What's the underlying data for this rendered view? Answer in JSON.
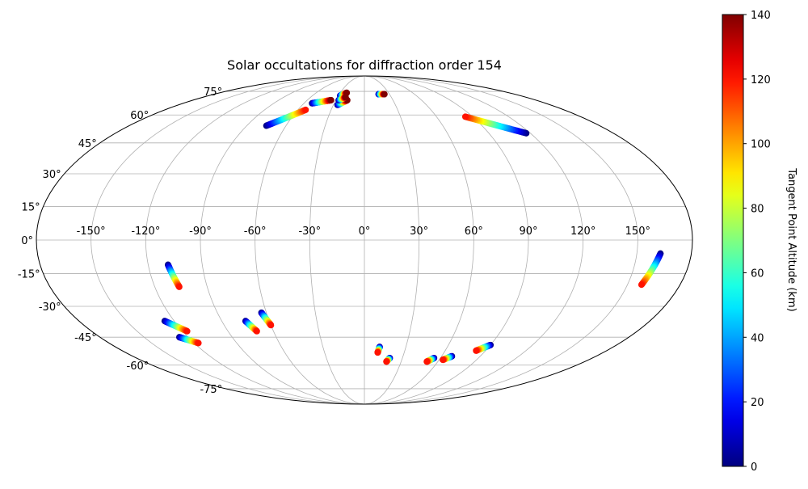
{
  "chart_data": {
    "type": "scatter",
    "projection": "mollweide",
    "title": "Solar occultations for diffraction order 154",
    "grid": true,
    "xticks": [
      "-150°",
      "-120°",
      "-90°",
      "-60°",
      "-30°",
      "0°",
      "30°",
      "60°",
      "90°",
      "120°",
      "150°"
    ],
    "xtick_values": [
      -150,
      -120,
      -90,
      -60,
      -30,
      0,
      30,
      60,
      90,
      120,
      150
    ],
    "yticks": [
      "75°",
      "60°",
      "45°",
      "30°",
      "15°",
      "0°",
      "-15°",
      "-30°",
      "-45°",
      "-60°",
      "-75°"
    ],
    "ytick_values": [
      75,
      60,
      45,
      30,
      15,
      0,
      -15,
      -30,
      -45,
      -60,
      -75
    ],
    "colorbar": {
      "label": "Tangent Point Altitude (km)",
      "range": [
        0,
        140
      ],
      "ticks": [
        "0",
        "20",
        "40",
        "60",
        "80",
        "100",
        "120",
        "140"
      ],
      "tick_values": [
        0,
        20,
        40,
        60,
        80,
        100,
        120,
        140
      ],
      "colormap": "jet"
    },
    "tracks": [
      {
        "start": [
          -75,
          54
        ],
        "end": [
          -53,
          63
        ],
        "alt": [
          0,
          120
        ]
      },
      {
        "start": [
          -52,
          67
        ],
        "end": [
          -35,
          69
        ],
        "alt": [
          0,
          140
        ]
      },
      {
        "start": [
          -28,
          72
        ],
        "end": [
          -22,
          74
        ],
        "alt": [
          0,
          140
        ]
      },
      {
        "start": [
          -26,
          66
        ],
        "end": [
          -18,
          69
        ],
        "alt": [
          0,
          140
        ]
      },
      {
        "start": [
          -27,
          69
        ],
        "end": [
          -21,
          71
        ],
        "alt": [
          0,
          140
        ]
      },
      {
        "start": [
          17,
          73
        ],
        "end": [
          24,
          73
        ],
        "alt": [
          0,
          140
        ]
      },
      {
        "start": [
          117,
          50
        ],
        "end": [
          84,
          59
        ],
        "alt": [
          0,
          120
        ]
      },
      {
        "start": [
          -109,
          -11
        ],
        "end": [
          -106,
          -21
        ],
        "alt": [
          0,
          120
        ]
      },
      {
        "start": [
          -126,
          -37
        ],
        "end": [
          -117,
          -42
        ],
        "alt": [
          0,
          120
        ]
      },
      {
        "start": [
          -126,
          -45
        ],
        "end": [
          -117,
          -48
        ],
        "alt": [
          0,
          120
        ]
      },
      {
        "start": [
          -75,
          -37
        ],
        "end": [
          -71,
          -42
        ],
        "alt": [
          0,
          120
        ]
      },
      {
        "start": [
          -63,
          -33
        ],
        "end": [
          -60,
          -39
        ],
        "alt": [
          0,
          120
        ]
      },
      {
        "start": [
          163,
          -6
        ],
        "end": [
          158,
          -20
        ],
        "alt": [
          0,
          120
        ]
      },
      {
        "start": [
          11,
          -50
        ],
        "end": [
          10,
          -53
        ],
        "alt": [
          0,
          120
        ]
      },
      {
        "start": [
          20,
          -56
        ],
        "end": [
          18,
          -58
        ],
        "alt": [
          0,
          120
        ]
      },
      {
        "start": [
          55,
          -56
        ],
        "end": [
          51,
          -58
        ],
        "alt": [
          0,
          120
        ]
      },
      {
        "start": [
          68,
          -55
        ],
        "end": [
          63,
          -57
        ],
        "alt": [
          0,
          120
        ]
      },
      {
        "start": [
          90,
          -49
        ],
        "end": [
          83,
          -52
        ],
        "alt": [
          0,
          120
        ]
      }
    ]
  }
}
